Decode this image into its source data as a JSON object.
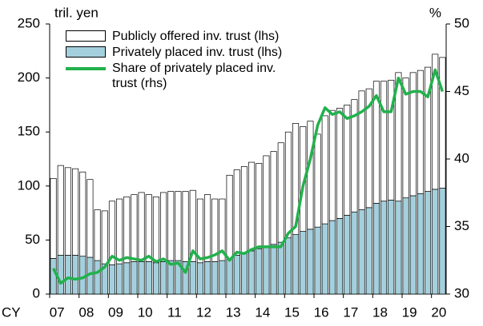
{
  "chart_data": {
    "type": "bar-line",
    "y_label": "tril. yen",
    "y2_label": "%",
    "x_label": "CY",
    "categories": [
      "07",
      null,
      null,
      null,
      "08",
      null,
      null,
      null,
      "09",
      null,
      null,
      null,
      "10",
      null,
      null,
      null,
      "11",
      null,
      null,
      null,
      "12",
      null,
      null,
      null,
      "13",
      null,
      null,
      null,
      "14",
      null,
      null,
      null,
      "15",
      null,
      null,
      null,
      "16",
      null,
      null,
      null,
      "17",
      null,
      null,
      null,
      "18",
      null,
      null,
      null,
      "19",
      null,
      null,
      null,
      "20",
      null
    ],
    "ylim": [
      0,
      250
    ],
    "yticks": [
      0,
      50,
      100,
      150,
      200,
      250
    ],
    "y2lim": [
      30,
      50
    ],
    "y2ticks": [
      30,
      35,
      40,
      45,
      50
    ],
    "series": [
      {
        "name": "Publicly offered inv. trust (lhs)",
        "type": "bar",
        "color": "#ffffff",
        "values": [
          74,
          83,
          81,
          80,
          78,
          72,
          47,
          49,
          59,
          60,
          61,
          62,
          64,
          62,
          61,
          64,
          64,
          64,
          65,
          66,
          59,
          62,
          58,
          57,
          77,
          79,
          80,
          82,
          79,
          84,
          86,
          92,
          98,
          103,
          97,
          100,
          86,
          100,
          102,
          102,
          102,
          104,
          110,
          110,
          113,
          111,
          111,
          119,
          111,
          114,
          114,
          115,
          125,
          121
        ]
      },
      {
        "name": "Privately placed inv. trust (lhs)",
        "type": "bar",
        "color": "#a3d0dc",
        "values": [
          33,
          36,
          36,
          36,
          35,
          34,
          31,
          28,
          27,
          28,
          29,
          30,
          30,
          30,
          29,
          30,
          31,
          31,
          30,
          30,
          29,
          30,
          30,
          31,
          33,
          36,
          38,
          40,
          42,
          44,
          46,
          48,
          52,
          55,
          58,
          60,
          62,
          65,
          68,
          70,
          73,
          76,
          78,
          80,
          84,
          86,
          87,
          86,
          89,
          91,
          93,
          95,
          97,
          98
        ]
      },
      {
        "name": "Share of privately placed inv. trust (rhs)",
        "type": "line",
        "axis": "y2",
        "color": "#22b14c",
        "values": [
          31.9,
          30.8,
          31.2,
          31.1,
          31.2,
          31.5,
          31.6,
          32.0,
          32.8,
          32.5,
          32.7,
          32.6,
          32.5,
          32.8,
          32.4,
          32.6,
          32.2,
          32.3,
          31.6,
          33.2,
          32.6,
          32.7,
          32.9,
          33.2,
          32.5,
          33.1,
          33.0,
          33.3,
          33.5,
          33.5,
          33.5,
          33.5,
          34.5,
          35.0,
          38.0,
          40.0,
          42.5,
          43.8,
          43.3,
          43.5,
          43.0,
          43.2,
          43.5,
          43.9,
          44.7,
          43.5,
          43.5,
          46.0,
          44.8,
          45.0,
          45.0,
          44.6,
          46.6,
          45.0
        ]
      }
    ]
  }
}
